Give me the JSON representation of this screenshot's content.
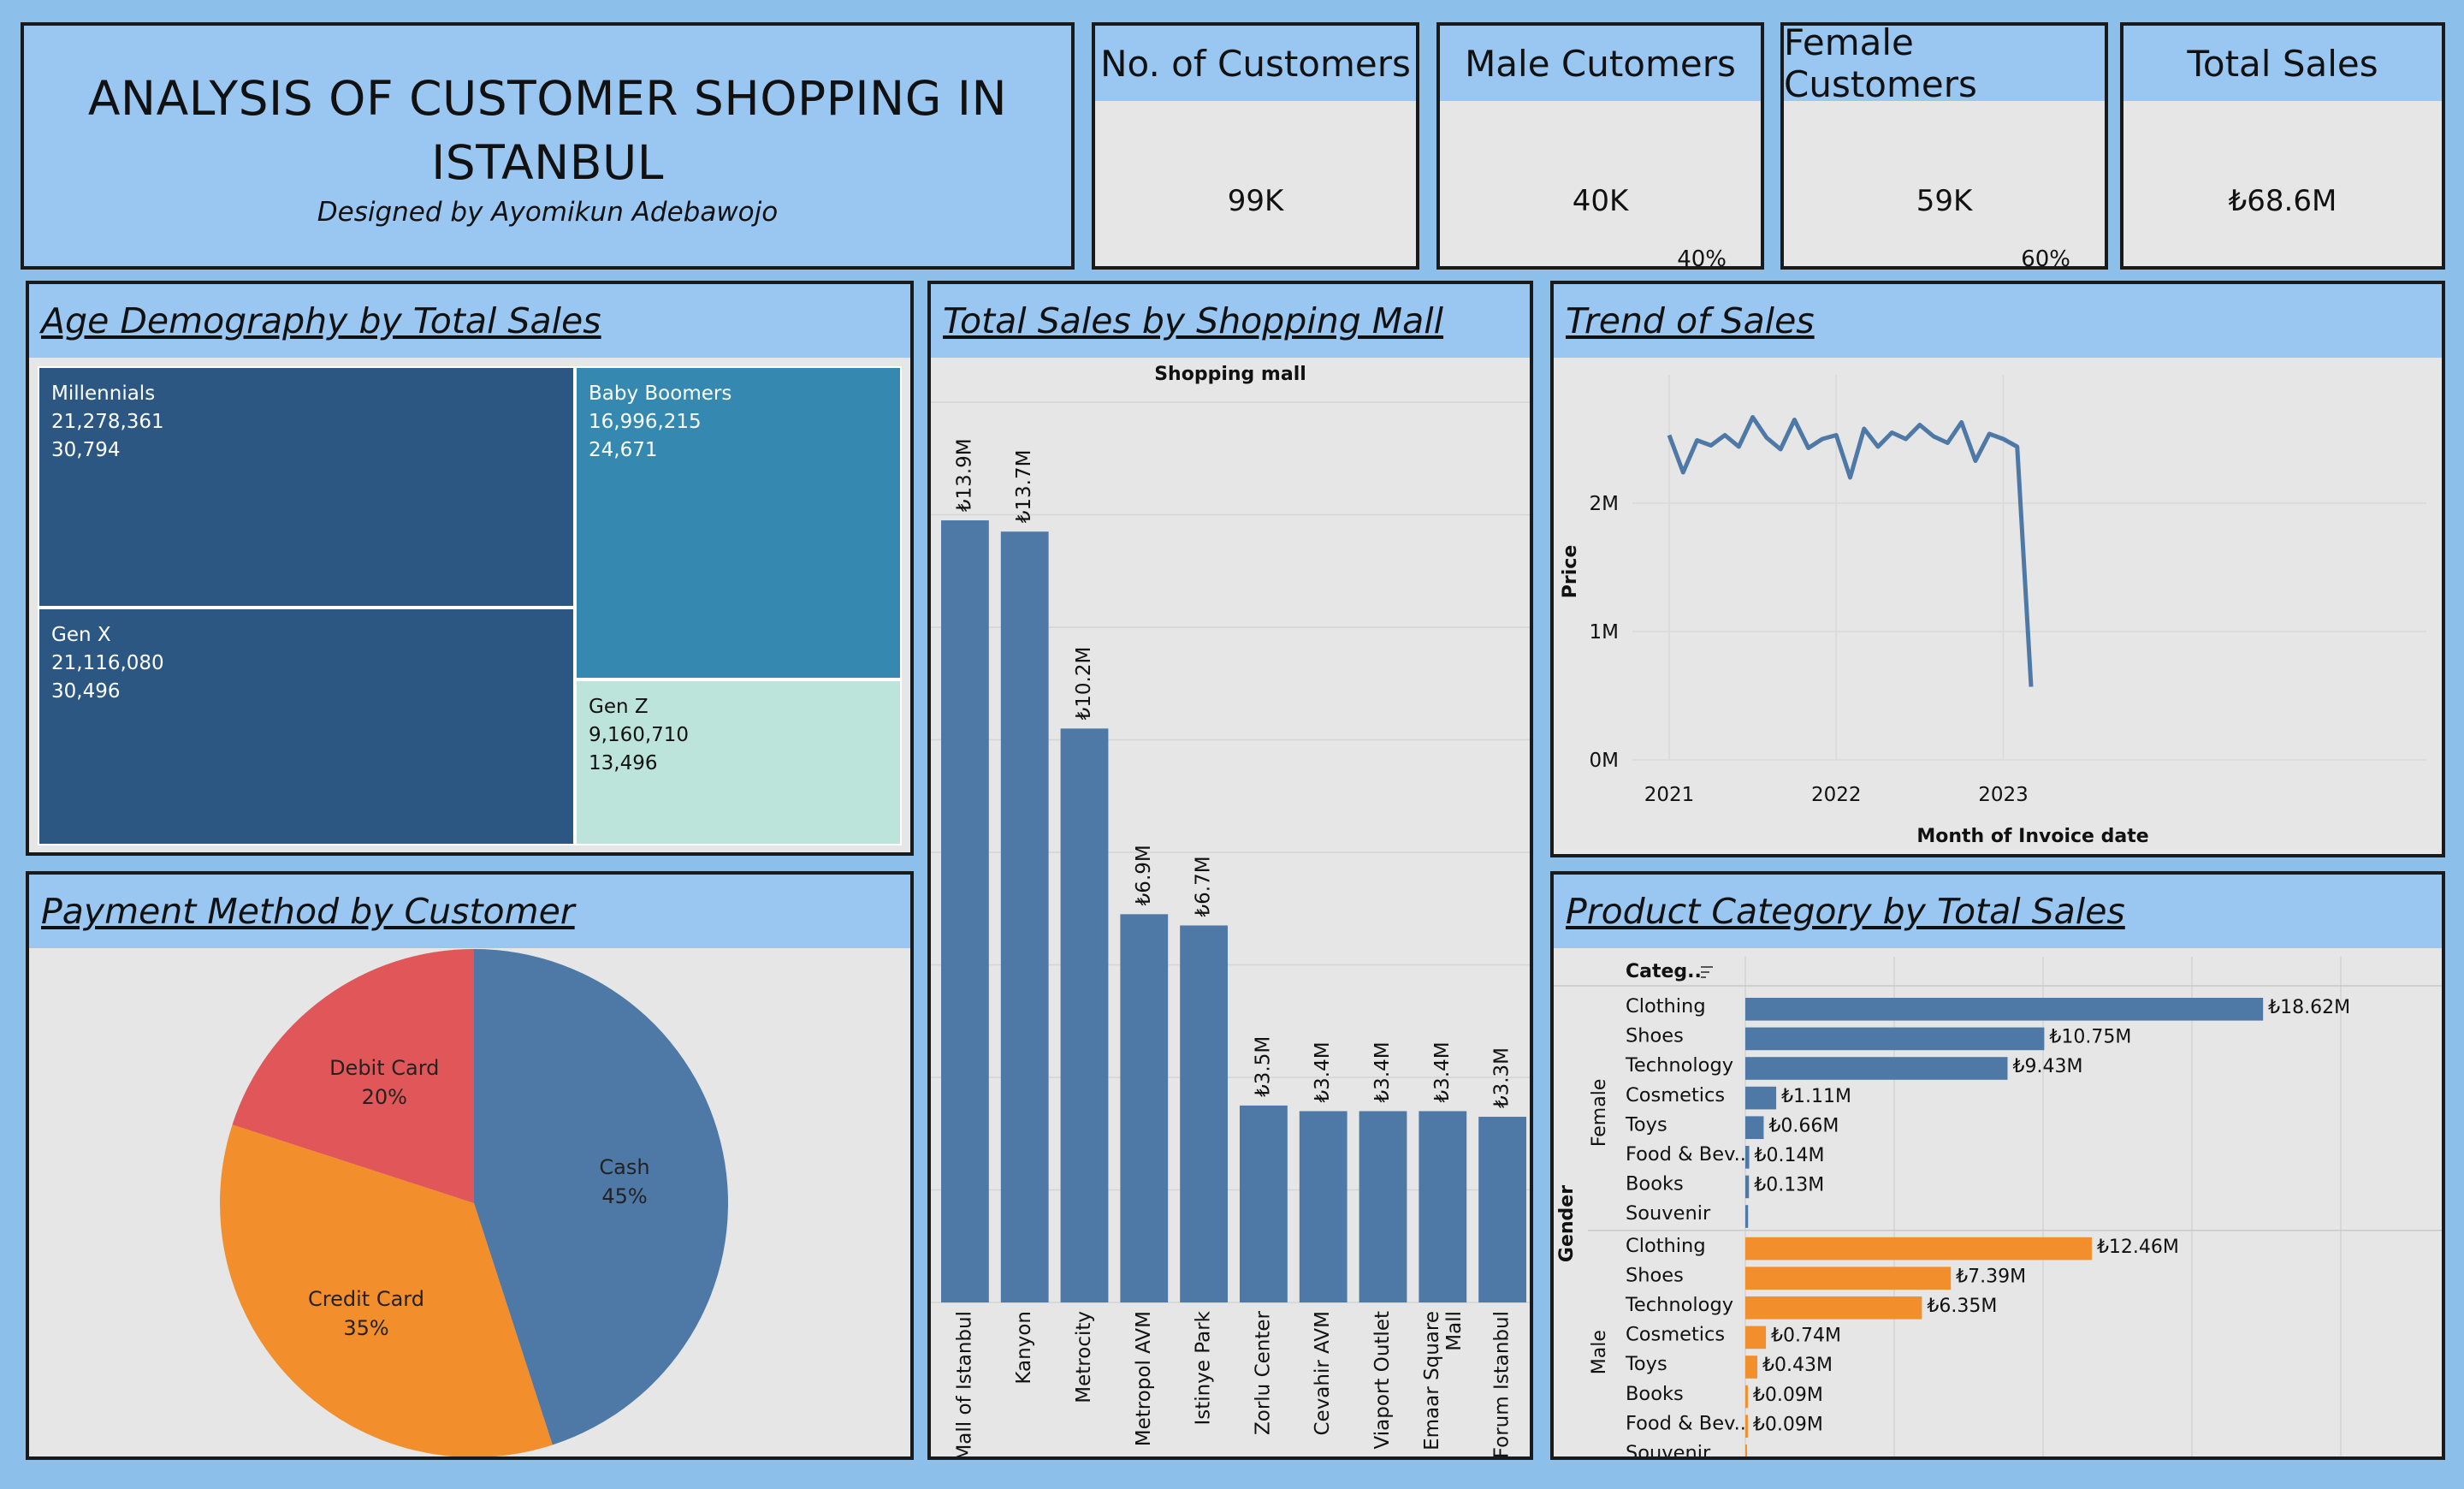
{
  "header": {
    "title_line1": "ANALYSIS OF CUSTOMER SHOPPING IN",
    "title_line2": "ISTANBUL",
    "subtitle": "Designed by Ayomikun Adebawojo"
  },
  "kpis": {
    "customers": {
      "label": "No. of Customers",
      "value": "99K"
    },
    "male": {
      "label": "Male Cutomers",
      "value": "40K",
      "pct": "40%"
    },
    "female": {
      "label": "Female Customers",
      "value": "59K",
      "pct": "60%"
    },
    "sales": {
      "label": "Total Sales",
      "value": "₺68.6M"
    }
  },
  "panels": {
    "age": "Age Demography by Total Sales",
    "mall": "Total Sales by Shopping Mall",
    "trend": "Trend of Sales",
    "payment": "Payment Method by Customer",
    "category": "Product Category by Total Sales"
  },
  "colors": {
    "blue": "#4e79a7",
    "orange": "#f28e2b",
    "red": "#e15759",
    "navy": "#2c5782",
    "teal": "#3589b0",
    "mint": "#bde4da",
    "header": "#99c7f2"
  },
  "chart_data": [
    {
      "id": "age",
      "type": "treemap",
      "items": [
        {
          "name": "Millennials",
          "sales": "21,278,361",
          "count": "30,794",
          "value": 21278361
        },
        {
          "name": "Gen X",
          "sales": "21,116,080",
          "count": "30,496",
          "value": 21116080
        },
        {
          "name": "Baby Boomers",
          "sales": "16,996,215",
          "count": "24,671",
          "value": 16996215
        },
        {
          "name": "Gen Z",
          "sales": "9,160,710",
          "count": "13,496",
          "value": 9160710
        }
      ]
    },
    {
      "id": "mall",
      "type": "bar",
      "header": "Shopping mall",
      "categories": [
        "Mall of Istanbul",
        "Kanyon",
        "Metrocity",
        "Metropol AVM",
        "Istinye Park",
        "Zorlu Center",
        "Cevahir AVM",
        "Viaport Outlet",
        "Emaar Square Mall",
        "Forum Istanbul"
      ],
      "values": [
        13.9,
        13.7,
        10.2,
        6.9,
        6.7,
        3.5,
        3.4,
        3.4,
        3.4,
        3.3
      ],
      "labels": [
        "₺13.9M",
        "₺13.7M",
        "₺10.2M",
        "₺6.9M",
        "₺6.7M",
        "₺3.5M",
        "₺3.4M",
        "₺3.4M",
        "₺3.4M",
        "₺3.3M"
      ],
      "ylim": [
        0,
        16
      ]
    },
    {
      "id": "trend",
      "type": "line",
      "xlabel": "Month of Invoice date",
      "ylabel": "Price",
      "x_ticks": [
        "2021",
        "2022",
        "2023"
      ],
      "y_ticks": [
        "0M",
        "1M",
        "2M"
      ],
      "ylim": [
        0,
        3.0
      ],
      "x_start": "2021-01",
      "values": [
        2.53,
        2.24,
        2.49,
        2.45,
        2.53,
        2.44,
        2.67,
        2.51,
        2.42,
        2.65,
        2.43,
        2.5,
        2.53,
        2.2,
        2.58,
        2.44,
        2.55,
        2.5,
        2.61,
        2.52,
        2.47,
        2.63,
        2.33,
        2.54,
        2.5,
        2.44,
        0.57
      ]
    },
    {
      "id": "payment",
      "type": "pie",
      "slices": [
        {
          "name": "Cash",
          "value": 45,
          "label": "45%",
          "color": "#4e79a7"
        },
        {
          "name": "Credit Card",
          "value": 35,
          "label": "35%",
          "color": "#f28e2b"
        },
        {
          "name": "Debit Card",
          "value": 20,
          "label": "20%",
          "color": "#e15759"
        }
      ]
    },
    {
      "id": "category",
      "type": "bar",
      "orientation": "horizontal",
      "column_header": "Categ..",
      "row_header": "Gender",
      "groups": [
        {
          "name": "Female",
          "color": "#4e79a7",
          "categories": [
            "Clothing",
            "Shoes",
            "Technology",
            "Cosmetics",
            "Toys",
            "Food & Bev..",
            "Books",
            "Souvenir"
          ],
          "values": [
            18.62,
            10.75,
            9.43,
            1.11,
            0.66,
            0.14,
            0.13,
            0.1
          ],
          "labels": [
            "₺18.62M",
            "₺10.75M",
            "₺9.43M",
            "₺1.11M",
            "₺0.66M",
            "₺0.14M",
            "₺0.13M",
            ""
          ]
        },
        {
          "name": "Male",
          "color": "#f28e2b",
          "categories": [
            "Clothing",
            "Shoes",
            "Technology",
            "Cosmetics",
            "Toys",
            "Books",
            "Food & Bev..",
            "Souvenir"
          ],
          "values": [
            12.46,
            7.39,
            6.35,
            0.74,
            0.43,
            0.09,
            0.09,
            0.06
          ],
          "labels": [
            "₺12.46M",
            "₺7.39M",
            "₺6.35M",
            "₺0.74M",
            "₺0.43M",
            "₺0.09M",
            "₺0.09M",
            ""
          ]
        }
      ],
      "xlim": [
        0,
        20
      ]
    }
  ]
}
